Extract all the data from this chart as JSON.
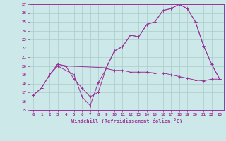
{
  "xlabel": "Windchill (Refroidissement éolien,°C)",
  "xlim": [
    -0.5,
    23.5
  ],
  "ylim": [
    15,
    27
  ],
  "yticks": [
    15,
    16,
    17,
    18,
    19,
    20,
    21,
    22,
    23,
    24,
    25,
    26,
    27
  ],
  "xticks": [
    0,
    1,
    2,
    3,
    4,
    5,
    6,
    7,
    8,
    9,
    10,
    11,
    12,
    13,
    14,
    15,
    16,
    17,
    18,
    19,
    20,
    21,
    22,
    23
  ],
  "bg_color": "#cce8e8",
  "line_color": "#993399",
  "grid_color": "#aacccc",
  "line1_x": [
    0,
    1,
    2,
    3,
    4,
    5,
    6,
    7,
    8,
    9,
    10,
    11,
    12,
    13,
    14,
    15,
    16,
    17,
    18,
    19,
    20,
    21,
    22,
    23
  ],
  "line1_y": [
    16.7,
    17.5,
    19.0,
    20.0,
    19.5,
    19.0,
    16.5,
    15.5,
    18.1,
    19.7,
    19.5,
    19.5,
    19.3,
    19.3,
    19.3,
    19.2,
    19.2,
    19.0,
    18.8,
    18.6,
    18.4,
    18.3,
    18.5,
    18.5
  ],
  "line2_x": [
    0,
    1,
    2,
    3,
    4,
    5,
    6,
    7,
    8,
    9,
    10,
    11,
    12,
    13,
    14,
    15,
    16,
    17,
    18,
    19,
    20,
    21,
    22,
    23
  ],
  "line2_y": [
    16.7,
    17.5,
    19.0,
    20.2,
    20.0,
    18.5,
    17.5,
    16.5,
    17.0,
    19.8,
    21.7,
    22.2,
    23.5,
    23.3,
    24.7,
    25.0,
    26.3,
    26.5,
    27.0,
    26.5,
    25.0,
    22.3,
    20.2,
    18.5
  ],
  "line3_x": [
    2,
    3,
    4,
    9,
    10,
    11,
    12,
    13,
    14,
    15,
    16,
    17,
    18,
    19,
    20,
    21,
    22,
    23
  ],
  "line3_y": [
    19.0,
    20.2,
    20.0,
    19.8,
    21.7,
    22.2,
    23.5,
    23.3,
    24.7,
    25.0,
    26.3,
    26.5,
    27.0,
    26.5,
    25.0,
    22.3,
    20.2,
    18.5
  ]
}
